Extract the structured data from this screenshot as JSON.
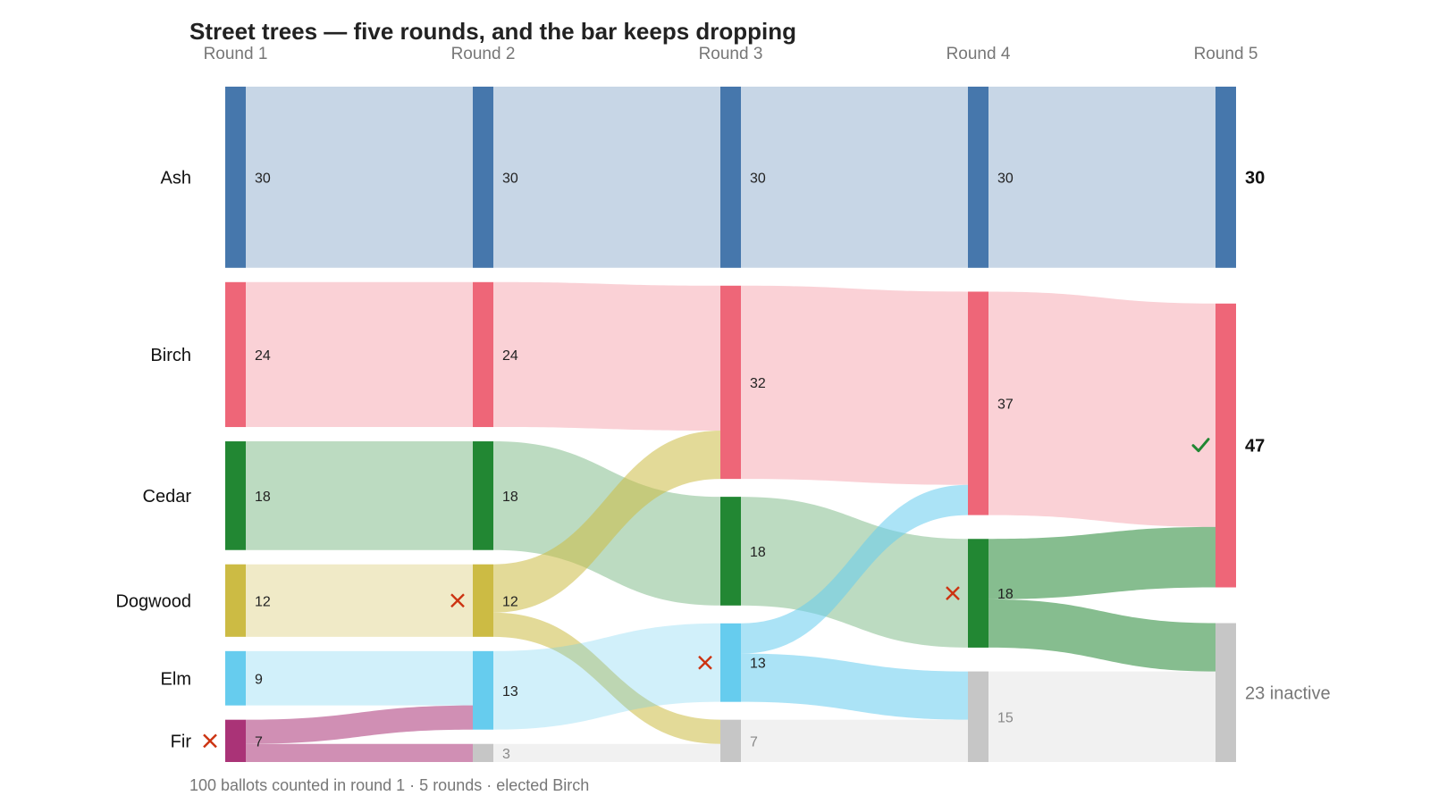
{
  "chart_data": {
    "type": "sankey",
    "title": "Street trees — five rounds, and the bar keeps dropping",
    "caption": "100 ballots counted in round 1 · 5 rounds · elected Birch",
    "rounds": [
      "Round 1",
      "Round 2",
      "Round 3",
      "Round 4",
      "Round 5"
    ],
    "candidates": [
      {
        "key": "ash",
        "name": "Ash",
        "color": "#4677AC"
      },
      {
        "key": "birch",
        "name": "Birch",
        "color": "#EE6678"
      },
      {
        "key": "cedar",
        "name": "Cedar",
        "color": "#228733"
      },
      {
        "key": "dogwood",
        "name": "Dogwood",
        "color": "#CCBB44"
      },
      {
        "key": "elm",
        "name": "Elm",
        "color": "#66CCEE"
      },
      {
        "key": "fir",
        "name": "Fir",
        "color": "#AA3377"
      }
    ],
    "exhausted": {
      "key": "ex",
      "color": "#C6C6C6"
    },
    "counts": [
      {
        "ash": 30,
        "birch": 24,
        "cedar": 18,
        "dogwood": 12,
        "elm": 9,
        "fir": 7
      },
      {
        "ash": 30,
        "birch": 24,
        "cedar": 18,
        "dogwood": 12,
        "elm": 13,
        "ex": 3
      },
      {
        "ash": 30,
        "birch": 32,
        "cedar": 18,
        "elm": 13,
        "ex": 7
      },
      {
        "ash": 30,
        "birch": 37,
        "cedar": 18,
        "ex": 15
      },
      {
        "ash": 30,
        "birch": 47,
        "ex": 23
      }
    ],
    "eliminated": [
      {
        "round": 0,
        "candidate": "fir"
      },
      {
        "round": 1,
        "candidate": "dogwood"
      },
      {
        "round": 2,
        "candidate": "elm"
      },
      {
        "round": 3,
        "candidate": "cedar"
      }
    ],
    "winner": {
      "round": 4,
      "candidate": "birch"
    },
    "transitions": [
      [
        {
          "from": "ash",
          "to": "ash",
          "value": 30
        },
        {
          "from": "birch",
          "to": "birch",
          "value": 24
        },
        {
          "from": "cedar",
          "to": "cedar",
          "value": 18
        },
        {
          "from": "dogwood",
          "to": "dogwood",
          "value": 12
        },
        {
          "from": "elm",
          "to": "elm",
          "value": 9
        },
        {
          "from": "fir",
          "to": "elm",
          "value": 4
        },
        {
          "from": "fir",
          "to": "ex",
          "value": 3
        }
      ],
      [
        {
          "from": "ash",
          "to": "ash",
          "value": 30
        },
        {
          "from": "birch",
          "to": "birch",
          "value": 24
        },
        {
          "from": "cedar",
          "to": "cedar",
          "value": 18
        },
        {
          "from": "dogwood",
          "to": "birch",
          "value": 8
        },
        {
          "from": "dogwood",
          "to": "ex",
          "value": 4
        },
        {
          "from": "elm",
          "to": "elm",
          "value": 13
        },
        {
          "from": "ex",
          "to": "ex",
          "value": 3
        }
      ],
      [
        {
          "from": "ash",
          "to": "ash",
          "value": 30
        },
        {
          "from": "birch",
          "to": "birch",
          "value": 32
        },
        {
          "from": "cedar",
          "to": "cedar",
          "value": 18
        },
        {
          "from": "elm",
          "to": "birch",
          "value": 5
        },
        {
          "from": "elm",
          "to": "ex",
          "value": 8
        },
        {
          "from": "ex",
          "to": "ex",
          "value": 7
        }
      ],
      [
        {
          "from": "ash",
          "to": "ash",
          "value": 30
        },
        {
          "from": "birch",
          "to": "birch",
          "value": 37
        },
        {
          "from": "cedar",
          "to": "birch",
          "value": 10
        },
        {
          "from": "cedar",
          "to": "ex",
          "value": 8
        },
        {
          "from": "ex",
          "to": "ex",
          "value": 15
        }
      ]
    ],
    "final_labels": {
      "inactive_suffix": "inactive"
    }
  }
}
